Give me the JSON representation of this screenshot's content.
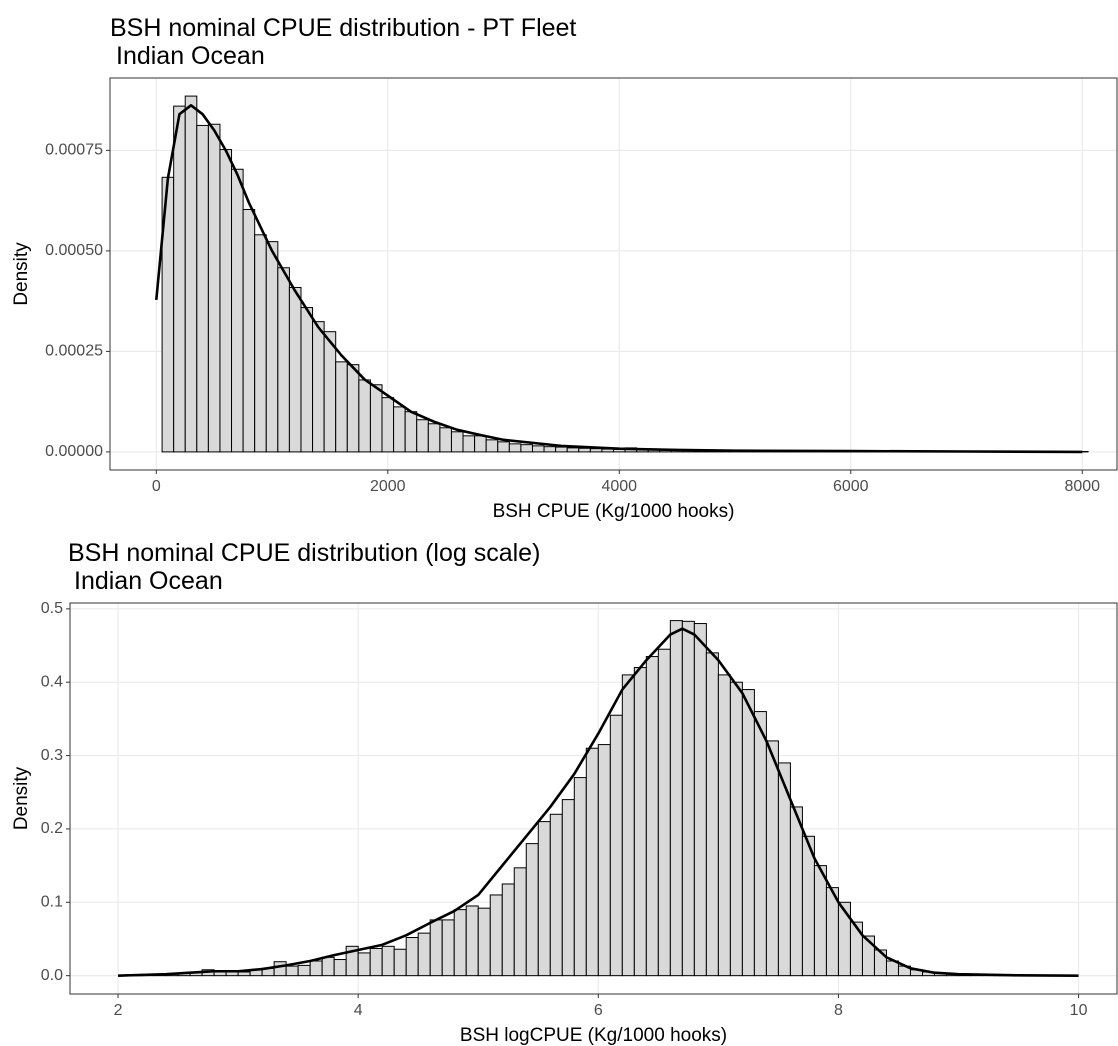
{
  "chart_data": [
    {
      "type": "histogram",
      "title": "BSH nominal CPUE distribution - PT Fleet",
      "subtitle": "Indian Ocean",
      "xlabel": "BSH CPUE (Kg/1000 hooks)",
      "ylabel": "Density",
      "bins": [
        50,
        150,
        250,
        350,
        450,
        550,
        650,
        750,
        850,
        950,
        1050,
        1150,
        1250,
        1350,
        1450,
        1550,
        1650,
        1750,
        1850,
        1950,
        2050,
        2150,
        2250,
        2350,
        2450,
        2550,
        2650,
        2750,
        2850,
        2950,
        3050,
        3150,
        3250,
        3350,
        3450,
        3550,
        3650,
        3750,
        3850,
        3950,
        4050,
        4150,
        4250,
        4350,
        4450,
        4550,
        4650,
        4750,
        4850,
        4950,
        5050,
        5150,
        5250,
        5350,
        5450,
        5550,
        5650,
        5750,
        5850,
        5950,
        6050,
        6150,
        6250,
        6350,
        6450,
        6550,
        6650,
        6750,
        6850,
        6950,
        7050,
        7150,
        7250,
        7350,
        7450,
        7550,
        7650,
        7750,
        7850,
        7950,
        8050
      ],
      "values": [
        0.000683,
        0.00086,
        0.000885,
        0.000812,
        0.000815,
        0.000752,
        0.000703,
        0.000603,
        0.00054,
        0.000523,
        0.000458,
        0.000409,
        0.000359,
        0.000324,
        0.000299,
        0.000224,
        0.000217,
        0.000179,
        0.000167,
        0.000135,
        0.000112,
        0.0001,
        8e-05,
        7e-05,
        6e-05,
        5e-05,
        4e-05,
        4e-05,
        3e-05,
        2.5e-05,
        2e-05,
        1.8e-05,
        1.5e-05,
        1.3e-05,
        1.2e-05,
        1e-05,
        9e-06,
        8e-06,
        7e-06,
        6e-06,
        1e-05,
        6e-06,
        5e-06,
        5e-06,
        4e-06,
        4e-06,
        3e-06,
        3e-06,
        3e-06,
        2e-06,
        2e-06,
        2e-06,
        2e-06,
        2e-06,
        2e-06,
        2e-06,
        2e-06,
        2e-06,
        2e-06,
        2e-06,
        1e-06,
        1e-06,
        1e-06,
        1e-06,
        1e-06,
        1e-06,
        1e-06,
        1e-06,
        1e-06,
        1e-06,
        1e-06,
        1e-06,
        1e-06,
        1e-06,
        1e-06,
        1e-06,
        1e-06,
        1e-06,
        1e-06,
        1e-06
      ],
      "color": "#d9d9d9",
      "edgecolor": "#000000",
      "density_line": {
        "x": [
          0,
          100,
          200,
          300,
          400,
          500,
          600,
          700,
          800,
          900,
          1000,
          1200,
          1400,
          1600,
          1800,
          2000,
          2200,
          2400,
          2600,
          2800,
          3000,
          3500,
          4000,
          4500,
          5000,
          6000,
          7000,
          8000
        ],
        "values": [
          0.000378,
          0.00068,
          0.00084,
          0.000862,
          0.00084,
          0.0008,
          0.00075,
          0.00069,
          0.00062,
          0.00056,
          0.0005,
          0.0004,
          0.00031,
          0.00024,
          0.00018,
          0.00014,
          0.0001,
          7.5e-05,
          5.5e-05,
          4.2e-05,
          3e-05,
          1.5e-05,
          8e-06,
          5e-06,
          3e-06,
          2e-06,
          1e-06,
          0
        ],
        "color": "#000000"
      },
      "xlim": [
        -400,
        8300
      ],
      "ylim": [
        -4.5e-05,
        0.00093
      ],
      "xticks": [
        0,
        2000,
        4000,
        6000,
        8000
      ],
      "yticks": [
        {
          "value": 0,
          "label": "0.00000"
        },
        0.00025,
        {
          "value": 0.0005,
          "label": "0.00050"
        },
        0.00075
      ],
      "grid": true
    },
    {
      "type": "histogram",
      "title": "BSH nominal CPUE distribution (log scale)",
      "subtitle": "Indian Ocean",
      "xlabel": "BSH logCPUE (Kg/1000 hooks)",
      "ylabel": "Density",
      "bins": [
        2,
        2.1,
        2.2,
        2.3,
        2.4,
        2.5,
        2.6,
        2.7,
        2.8,
        2.9,
        3,
        3.1,
        3.2,
        3.3,
        3.4,
        3.5,
        3.6,
        3.7,
        3.8,
        3.9,
        4,
        4.1,
        4.2,
        4.3,
        4.4,
        4.5,
        4.6,
        4.7,
        4.8,
        4.9,
        5,
        5.1,
        5.2,
        5.3,
        5.4,
        5.5,
        5.6,
        5.7,
        5.8,
        5.9,
        6,
        6.1,
        6.2,
        6.3,
        6.4,
        6.5,
        6.6,
        6.7,
        6.8,
        6.9,
        7,
        7.1,
        7.2,
        7.3,
        7.4,
        7.5,
        7.6,
        7.7,
        7.8,
        7.9,
        8,
        8.1,
        8.2,
        8.3,
        8.4,
        8.5,
        8.6,
        8.7,
        8.8,
        8.9,
        9,
        9.1,
        9.2,
        9.3,
        9.4,
        9.5,
        9.6,
        9.7,
        9.8,
        9.9,
        10
      ],
      "values": [
        0,
        0.001,
        0.001,
        0.002,
        0.002,
        0.003,
        0.004,
        0.008,
        0.005,
        0.005,
        0.005,
        0.008,
        0.01,
        0.019,
        0.013,
        0.014,
        0.02,
        0.025,
        0.022,
        0.04,
        0.031,
        0.037,
        0.04,
        0.036,
        0.052,
        0.058,
        0.076,
        0.076,
        0.09,
        0.095,
        0.092,
        0.11,
        0.125,
        0.147,
        0.18,
        0.21,
        0.22,
        0.24,
        0.27,
        0.31,
        0.315,
        0.355,
        0.41,
        0.42,
        0.435,
        0.445,
        0.484,
        0.483,
        0.48,
        0.44,
        0.41,
        0.4,
        0.39,
        0.36,
        0.32,
        0.29,
        0.23,
        0.19,
        0.15,
        0.12,
        0.1,
        0.073,
        0.054,
        0.035,
        0.02,
        0.013,
        0.008,
        0.005,
        0.003,
        0.002,
        0.001,
        0.001,
        0.0005,
        0.0005,
        0,
        0,
        0,
        0,
        0,
        0
      ],
      "color": "#d9d9d9",
      "edgecolor": "#000000",
      "density_line": {
        "x": [
          2,
          2.2,
          2.4,
          2.6,
          2.8,
          3,
          3.2,
          3.4,
          3.6,
          3.8,
          4,
          4.2,
          4.4,
          4.6,
          4.8,
          5,
          5.2,
          5.4,
          5.6,
          5.8,
          6,
          6.2,
          6.4,
          6.6,
          6.7,
          6.8,
          7,
          7.2,
          7.4,
          7.6,
          7.8,
          8,
          8.2,
          8.4,
          8.6,
          8.8,
          9,
          9.5,
          10
        ],
        "values": [
          0,
          0.001,
          0.002,
          0.004,
          0.006,
          0.006,
          0.009,
          0.014,
          0.02,
          0.028,
          0.035,
          0.042,
          0.055,
          0.072,
          0.088,
          0.11,
          0.15,
          0.19,
          0.23,
          0.275,
          0.33,
          0.39,
          0.43,
          0.465,
          0.473,
          0.465,
          0.43,
          0.385,
          0.32,
          0.24,
          0.16,
          0.1,
          0.055,
          0.025,
          0.01,
          0.004,
          0.002,
          0.0005,
          0
        ],
        "color": "#000000"
      },
      "xlim": [
        1.6,
        10.32
      ],
      "ylim": [
        -0.025,
        0.508
      ],
      "xticks": [
        2,
        4,
        6,
        8,
        10
      ],
      "yticks": [
        {
          "value": 0,
          "label": "0.0"
        },
        0.1,
        0.2,
        0.3,
        0.4,
        0.5
      ],
      "grid": true
    }
  ]
}
